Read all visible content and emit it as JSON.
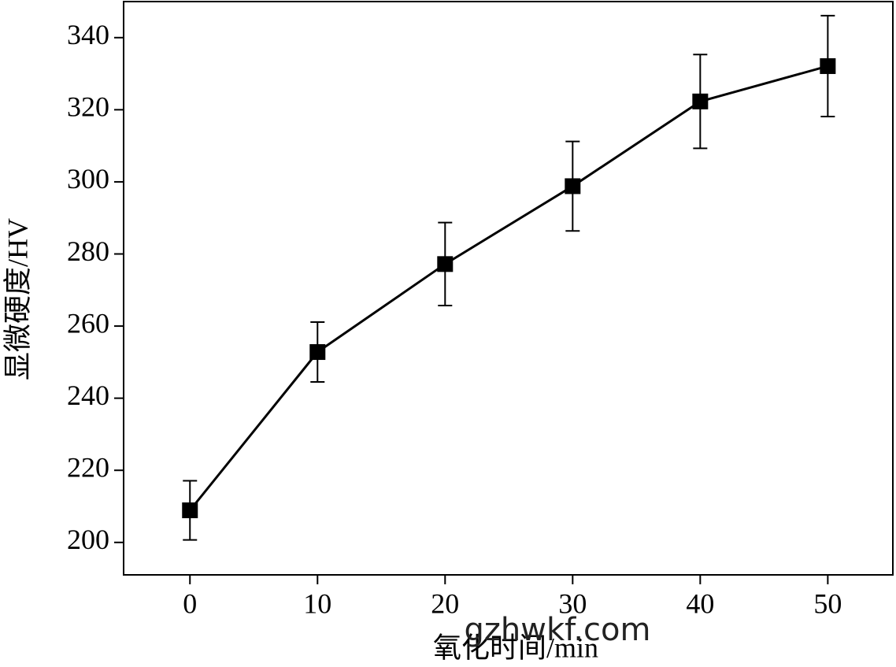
{
  "chart_data": {
    "type": "line",
    "xlabel": "氧化时间/min",
    "ylabel": "显微硬度/HV",
    "watermark": "gzhwkf.com",
    "x": [
      0,
      10,
      20,
      30,
      40,
      50
    ],
    "values": [
      208.9,
      252.8,
      277.2,
      298.8,
      322.3,
      332.1
    ],
    "errors": [
      8.2,
      8.3,
      11.5,
      12.4,
      13,
      14
    ],
    "color": "#000000",
    "xlim": [
      -5.2,
      55.1
    ],
    "xticks": [
      0,
      10,
      20,
      30,
      40,
      50
    ],
    "ylim": [
      191,
      350
    ],
    "yticks": [
      200,
      220,
      240,
      260,
      280,
      300,
      320,
      340
    ]
  }
}
